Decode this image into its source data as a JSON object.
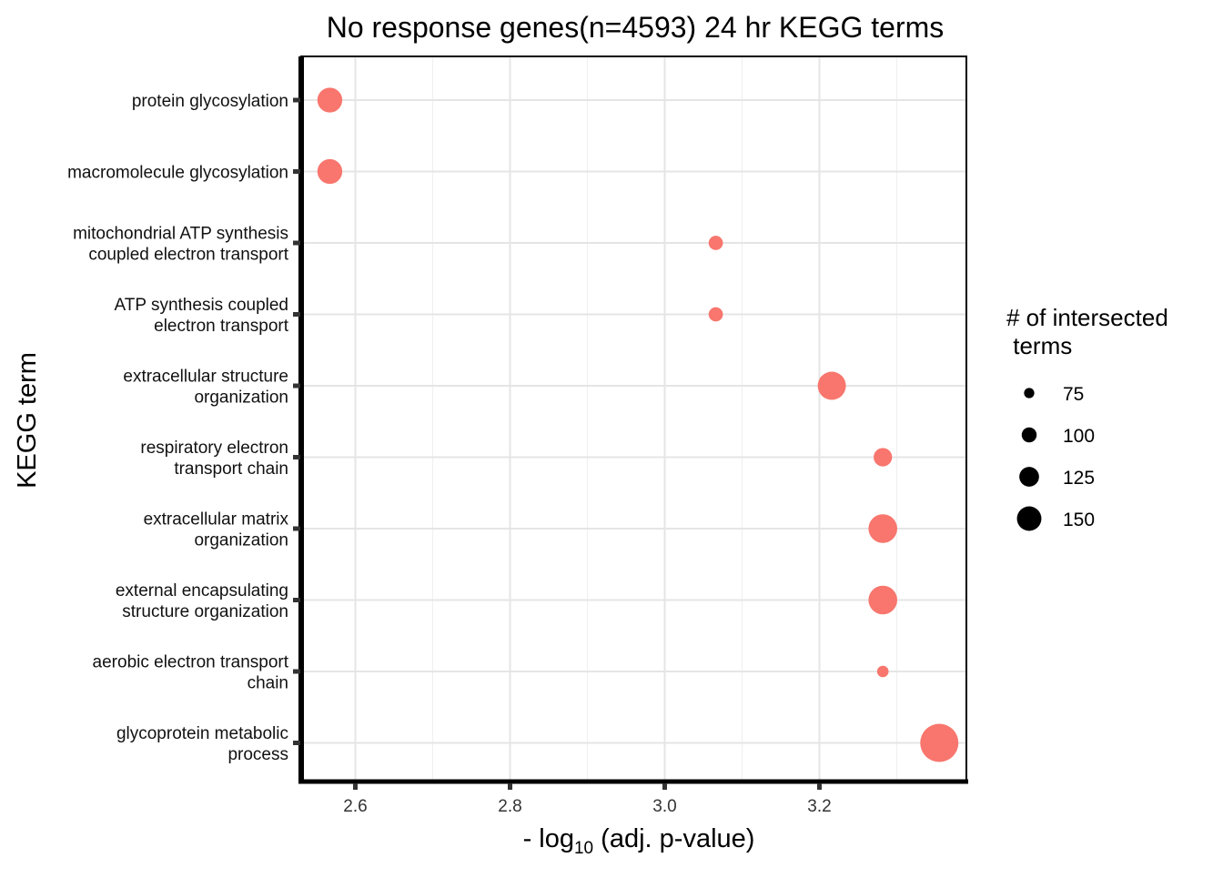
{
  "chart_data": {
    "type": "scatter",
    "title": "No response genes(n=4593) 24 hr KEGG terms",
    "xlabel_prefix": "- log",
    "xlabel_sub": "10",
    "xlabel_suffix": " (adj. p-value)",
    "ylabel": "KEGG term",
    "xlim": [
      2.53,
      3.39
    ],
    "x_ticks": [
      2.6,
      2.8,
      3.0,
      3.2
    ],
    "x_tick_labels": [
      "2.6",
      "2.8",
      "3.0",
      "3.2"
    ],
    "grid": true,
    "categories": [
      [
        "protein glycosylation"
      ],
      [
        "macromolecule glycosylation"
      ],
      [
        "mitochondrial ATP synthesis",
        "coupled electron transport"
      ],
      [
        "ATP synthesis coupled",
        "electron transport"
      ],
      [
        "extracellular structure",
        "organization"
      ],
      [
        "respiratory electron",
        "transport chain"
      ],
      [
        "extracellular matrix",
        "organization"
      ],
      [
        "external encapsulating",
        "structure organization"
      ],
      [
        "aerobic electron transport",
        "chain"
      ],
      [
        "glycoprotein metabolic",
        "process"
      ]
    ],
    "points": [
      {
        "x": 2.567,
        "size": 110
      },
      {
        "x": 2.567,
        "size": 110
      },
      {
        "x": 3.066,
        "size": 72
      },
      {
        "x": 3.066,
        "size": 72
      },
      {
        "x": 3.216,
        "size": 122
      },
      {
        "x": 3.282,
        "size": 87
      },
      {
        "x": 3.282,
        "size": 124
      },
      {
        "x": 3.282,
        "size": 124
      },
      {
        "x": 3.282,
        "size": 62
      },
      {
        "x": 3.355,
        "size": 158
      }
    ],
    "point_color": "#F8766D",
    "legend": {
      "title_lines": [
        "# of intersected",
        " terms"
      ],
      "position": "right",
      "sizes": [
        75,
        100,
        125,
        150
      ],
      "labels": [
        "75",
        "100",
        "125",
        "150"
      ],
      "color": "#000000"
    }
  }
}
